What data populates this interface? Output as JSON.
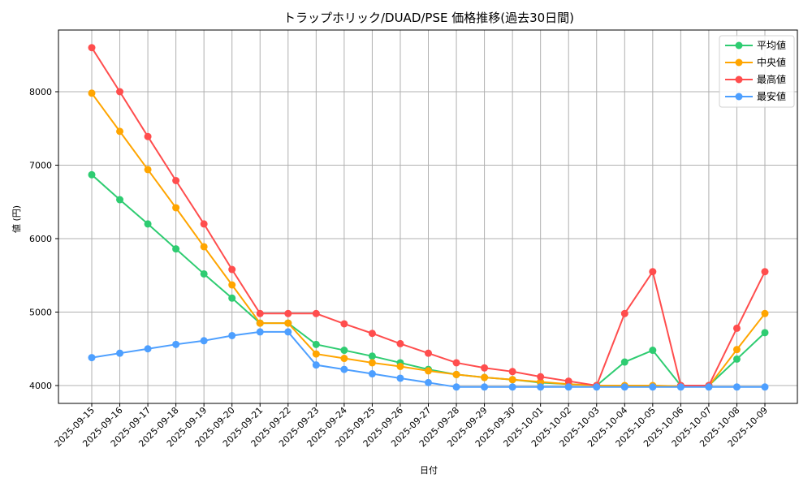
{
  "chart_data": {
    "type": "line",
    "title": "トラップホリック/DUAD/PSE 価格推移(過去30日間)",
    "xlabel": "日付",
    "ylabel": "値 (円)",
    "ylim": [
      3750,
      8820
    ],
    "yticks": [
      4000,
      5000,
      6000,
      7000,
      8000
    ],
    "grid": true,
    "legend_position": "upper right",
    "categories": [
      "2025-09-15",
      "2025-09-16",
      "2025-09-17",
      "2025-09-18",
      "2025-09-19",
      "2025-09-20",
      "2025-09-21",
      "2025-09-22",
      "2025-09-23",
      "2025-09-24",
      "2025-09-25",
      "2025-09-26",
      "2025-09-27",
      "2025-09-28",
      "2025-09-29",
      "2025-09-30",
      "2025-10-01",
      "2025-10-02",
      "2025-10-03",
      "2025-10-04",
      "2025-10-05",
      "2025-10-06",
      "2025-10-07",
      "2025-10-08",
      "2025-10-09"
    ],
    "series": [
      {
        "name": "平均値",
        "color": "#2ecc71",
        "values": [
          6870,
          6530,
          6200,
          5860,
          5520,
          5190,
          4850,
          4850,
          4560,
          4480,
          4400,
          4310,
          4220,
          4150,
          4110,
          4080,
          4040,
          4020,
          4000,
          4320,
          4480,
          4000,
          4000,
          4360,
          4720
        ]
      },
      {
        "name": "中央値",
        "color": "#ffa500",
        "values": [
          7980,
          7460,
          6940,
          6420,
          5890,
          5370,
          4850,
          4850,
          4430,
          4370,
          4310,
          4260,
          4200,
          4150,
          4110,
          4080,
          4050,
          4020,
          4000,
          4000,
          4000,
          3990,
          3990,
          4490,
          4980
        ]
      },
      {
        "name": "最高値",
        "color": "#ff4d4d",
        "values": [
          8600,
          8000,
          7390,
          6790,
          6200,
          5580,
          4980,
          4980,
          4980,
          4840,
          4710,
          4570,
          4440,
          4310,
          4240,
          4190,
          4120,
          4060,
          4000,
          4980,
          5550,
          4000,
          4000,
          4780,
          5550
        ]
      },
      {
        "name": "最安値",
        "color": "#4d9fff",
        "values": [
          4380,
          4440,
          4500,
          4560,
          4610,
          4680,
          4730,
          4730,
          4280,
          4220,
          4160,
          4100,
          4040,
          3980,
          3980,
          3980,
          3980,
          3980,
          3980,
          3980,
          3980,
          3980,
          3980,
          3980,
          3980
        ]
      }
    ]
  }
}
